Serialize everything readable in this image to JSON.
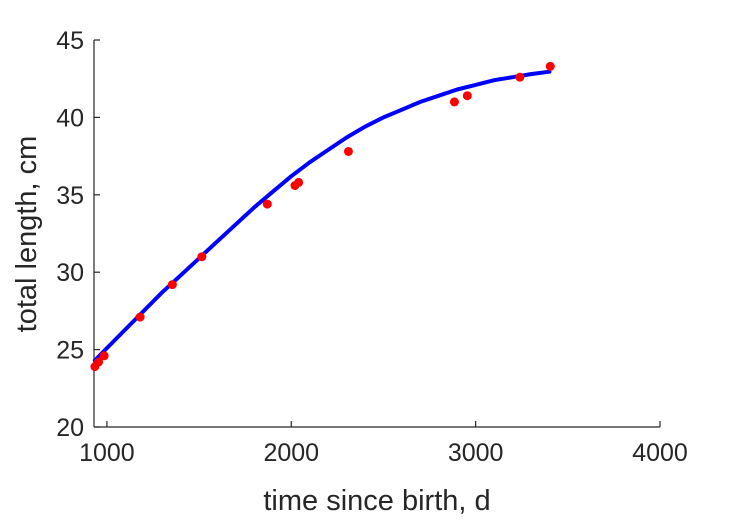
{
  "chart_data": {
    "type": "scatter",
    "title": "",
    "xlabel": "time since birth, d",
    "ylabel": "total length, cm",
    "xlim": [
      930,
      4000
    ],
    "ylim": [
      20,
      45
    ],
    "xticks": [
      1000,
      2000,
      3000,
      4000
    ],
    "xtick_labels": [
      "1000",
      "2000",
      "3000",
      "4000"
    ],
    "yticks": [
      20,
      25,
      30,
      35,
      40,
      45
    ],
    "ytick_labels": [
      "20",
      "25",
      "30",
      "35",
      "40",
      "45"
    ],
    "grid": false,
    "legend": "none",
    "series": [
      {
        "kind": "points",
        "color": "#ff0000",
        "x": [
          935,
          955,
          985,
          1180,
          1355,
          1515,
          1870,
          2020,
          2040,
          2310,
          2885,
          2955,
          3240,
          3405
        ],
        "y": [
          23.9,
          24.2,
          24.6,
          27.1,
          29.2,
          31.0,
          34.4,
          35.6,
          35.8,
          37.8,
          41.0,
          41.4,
          42.6,
          43.3
        ]
      },
      {
        "kind": "line",
        "color": "#0000ff",
        "x": [
          935,
          1000,
          1100,
          1200,
          1300,
          1400,
          1500,
          1600,
          1700,
          1800,
          1900,
          2000,
          2100,
          2200,
          2300,
          2400,
          2500,
          2600,
          2700,
          2800,
          2900,
          3000,
          3100,
          3200,
          3300,
          3400
        ],
        "y": [
          24.3,
          25.1,
          26.3,
          27.5,
          28.7,
          29.8,
          30.9,
          32.0,
          33.1,
          34.2,
          35.2,
          36.2,
          37.1,
          37.9,
          38.7,
          39.4,
          40.0,
          40.5,
          41.0,
          41.4,
          41.8,
          42.1,
          42.4,
          42.6,
          42.8,
          42.95
        ]
      }
    ]
  }
}
